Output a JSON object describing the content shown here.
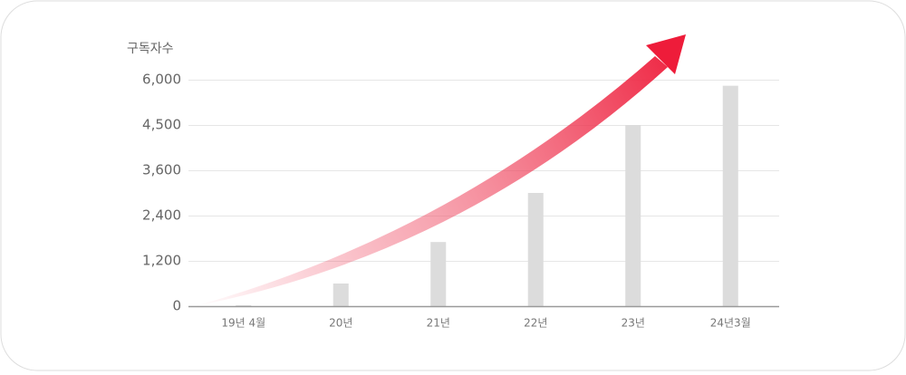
{
  "chart_data": {
    "type": "bar",
    "y_axis_title": "구독자수",
    "categories": [
      "19년 4월",
      "20년",
      "21년",
      "22년",
      "23년",
      "24년3월"
    ],
    "values": [
      25,
      600,
      1700,
      3000,
      4500,
      5800
    ],
    "color": "#dcdcdc",
    "ylim": [
      0,
      6000
    ],
    "yticks": [
      0,
      {
        "value": 1200,
        "label": "1,200"
      },
      {
        "value": 2400,
        "label": "2,400"
      },
      {
        "value": 3600,
        "label": "3,600"
      },
      {
        "value": 4500,
        "label": "4,500"
      },
      {
        "value": 6000,
        "label": "6,000"
      }
    ],
    "grid": true
  }
}
